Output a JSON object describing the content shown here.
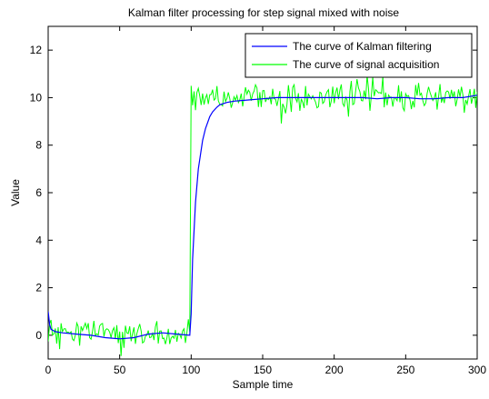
{
  "chart_data": {
    "type": "line",
    "title": "Kalman filter processing for step signal mixed with noise",
    "xlabel": "Sample time",
    "ylabel": "Value",
    "xlim": [
      0,
      300
    ],
    "ylim": [
      -1,
      13
    ],
    "xticks": [
      0,
      50,
      100,
      150,
      200,
      250,
      300
    ],
    "yticks": [
      0,
      2,
      4,
      6,
      8,
      10,
      12
    ],
    "grid": false,
    "legend_position": "top-right",
    "step": {
      "at_x": 100,
      "low": 0,
      "high": 10
    },
    "series": [
      {
        "name": "The curve of Kalman filtering",
        "color": "#0000ff",
        "x": [
          0,
          1,
          2,
          5,
          10,
          20,
          30,
          40,
          50,
          60,
          70,
          80,
          90,
          99,
          100,
          101,
          103,
          105,
          108,
          110,
          113,
          115,
          118,
          120,
          125,
          130,
          140,
          150,
          160,
          170,
          180,
          190,
          200,
          210,
          220,
          230,
          240,
          250,
          260,
          270,
          280,
          290,
          300
        ],
        "y": [
          1.0,
          0.45,
          0.25,
          0.15,
          0.1,
          0.05,
          0.0,
          -0.1,
          -0.15,
          -0.1,
          0.05,
          0.1,
          0.05,
          0.0,
          0.9,
          3.2,
          5.6,
          7.0,
          8.2,
          8.7,
          9.2,
          9.4,
          9.6,
          9.7,
          9.8,
          9.85,
          9.9,
          9.95,
          10.0,
          10.0,
          10.0,
          10.0,
          10.0,
          10.0,
          10.0,
          9.95,
          10.0,
          10.0,
          9.95,
          9.95,
          10.0,
          10.0,
          10.1
        ]
      },
      {
        "name": "The curve of signal acquisition",
        "color": "#00ff00",
        "noise_std": 0.3,
        "x": [
          0,
          99,
          100,
          300
        ],
        "y": [
          0,
          0,
          10,
          10
        ]
      }
    ]
  }
}
